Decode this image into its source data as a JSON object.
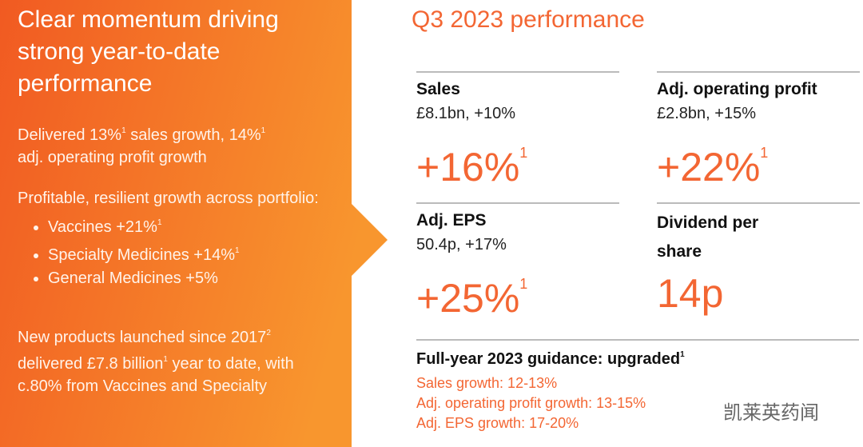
{
  "left": {
    "title": "Clear momentum driving strong year-to-date performance",
    "growth": [
      {
        "text": "Delivered 13%",
        "sup": "1"
      },
      {
        "text": " sales growth, 14%",
        "sup": "1"
      },
      {
        "text": " adj. operating profit growth"
      }
    ],
    "portfolio": {
      "intro": "Profitable, resilient growth across portfolio:",
      "items": [
        [
          {
            "text": "Vaccines +21%",
            "sup": "1"
          }
        ],
        [
          {
            "text": "Specialty Medicines +14%",
            "sup": "1"
          }
        ],
        [
          {
            "text": "General Medicines +5%"
          }
        ]
      ]
    },
    "new_products": [
      {
        "text": "New products launched since 2017",
        "sup": "2"
      },
      {
        "text": " delivered £7.8 billion",
        "sup": "1"
      },
      {
        "text": " year to date, with c.80% from Vaccines and Specialty"
      }
    ]
  },
  "right": {
    "title": "Q3 2023 performance",
    "metrics": [
      {
        "label": "Sales",
        "detail": "£8.1bn, +10%",
        "growth": "+16%",
        "sup": "1"
      },
      {
        "label": "Adj. operating profit",
        "detail": "£2.8bn, +15%",
        "growth": "+22%",
        "sup": "1"
      },
      {
        "label": "Adj. EPS",
        "detail": "50.4p, +17%",
        "growth": "+25%",
        "sup": "1"
      },
      {
        "label": "Dividend per share",
        "growth": "14p"
      }
    ],
    "guidance": {
      "title": "Full-year 2023 guidance: upgraded",
      "sup": "1",
      "items": [
        "Sales growth: 12-13%",
        "Adj. operating profit growth: 13-15%",
        "Adj. EPS growth: 17-20%"
      ]
    }
  },
  "watermark": "凯莱英药闻"
}
